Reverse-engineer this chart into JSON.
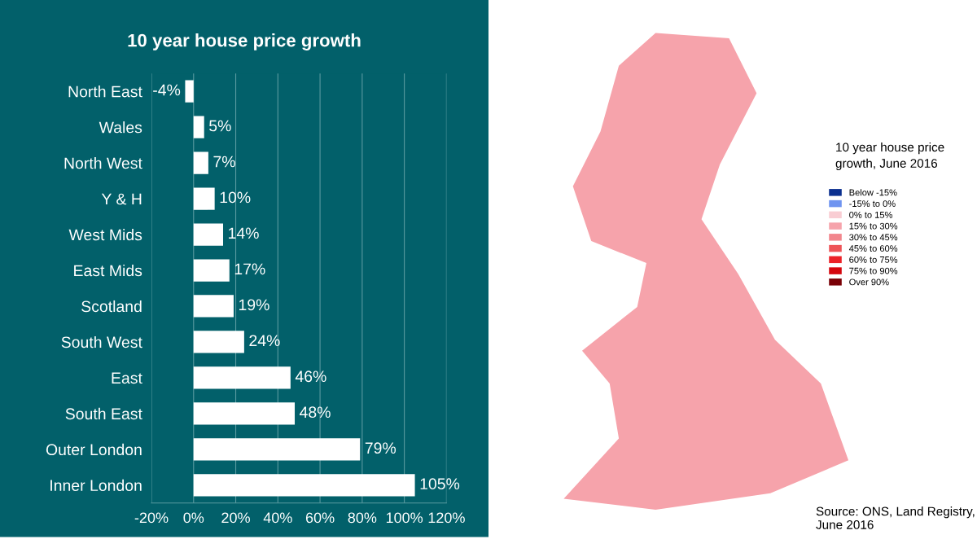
{
  "chart_data": [
    {
      "type": "bar",
      "orientation": "horizontal",
      "title": "10 year house price growth",
      "categories": [
        "North East",
        "Wales",
        "North West",
        "Y & H",
        "West Mids",
        "East Mids",
        "Scotland",
        "South West",
        "East",
        "South East",
        "Outer London",
        "Inner London"
      ],
      "values": [
        -4,
        5,
        7,
        10,
        14,
        17,
        19,
        24,
        46,
        48,
        79,
        105
      ],
      "value_labels": [
        "-4%",
        "5%",
        "7%",
        "10%",
        "14%",
        "17%",
        "19%",
        "24%",
        "46%",
        "48%",
        "79%",
        "105%"
      ],
      "color": "#ffffff",
      "xlim": [
        -20,
        120
      ],
      "xticks": [
        {
          "value": -20,
          "label": "-20%"
        },
        {
          "value": 0,
          "label": "0%"
        },
        {
          "value": 20,
          "label": "20%"
        },
        {
          "value": 40,
          "label": "40%"
        },
        {
          "value": 60,
          "label": "60%"
        },
        {
          "value": 80,
          "label": "80%"
        },
        {
          "value": 100,
          "label": "100%"
        },
        {
          "value": 120,
          "label": "120%"
        }
      ],
      "grid": "x"
    },
    {
      "type": "other",
      "legend_title": "10 year house price growth, June 2016",
      "categories": [
        "Below -15%",
        "-15% to 0%",
        "0% to 15%",
        "15% to 30%",
        "30% to 45%",
        "45% to 60%",
        "60% to 75%",
        "75% to 90%",
        "Over 90%"
      ],
      "colors": [
        "#0a2f8f",
        "#6f94f0",
        "#f9cdd3",
        "#f6a3ab",
        "#f2868d",
        "#ee5458",
        "#ec2228",
        "#d5060d",
        "#7a0006"
      ],
      "annotations": [
        "Source: ONS, Land Registry, June 2016"
      ]
    }
  ]
}
